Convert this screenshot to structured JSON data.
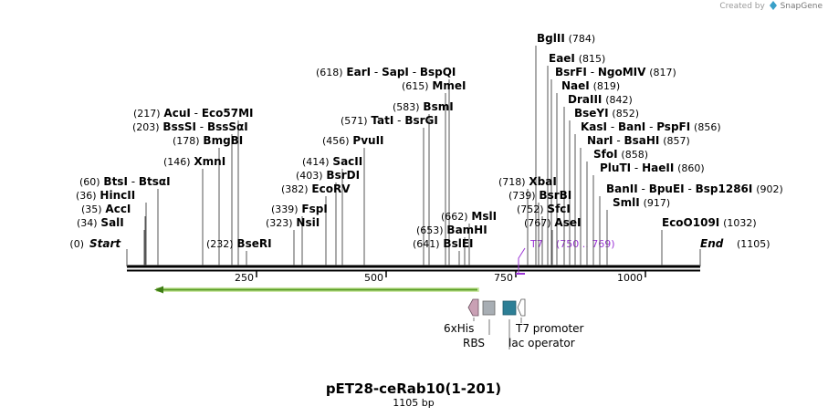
{
  "watermark": {
    "created_by": "Created by",
    "brand": "SnapGene"
  },
  "plasmid": {
    "name": "pET28-ceRab10(1-201)",
    "length_label": "1105 bp",
    "length": 1105
  },
  "ruler": {
    "ticks": [
      250,
      500,
      750,
      1000
    ]
  },
  "endpoints": {
    "start": {
      "pos": "(0)",
      "label": "Start"
    },
    "end": {
      "pos": "(1105)",
      "label": "End"
    }
  },
  "sites": [
    {
      "id": "bglii",
      "pos": "(784)",
      "names": [
        "BglII"
      ]
    },
    {
      "id": "eaei",
      "pos": "(815)",
      "names": [
        "EaeI"
      ]
    },
    {
      "id": "bsrfi",
      "pos": "(817)",
      "names": [
        "BsrFI",
        "NgoMIV"
      ]
    },
    {
      "id": "naei",
      "pos": "(819)",
      "names": [
        "NaeI"
      ]
    },
    {
      "id": "draiii",
      "pos": "(842)",
      "names": [
        "DraIII"
      ]
    },
    {
      "id": "bseyi",
      "pos": "(852)",
      "names": [
        "BseYI"
      ]
    },
    {
      "id": "kasi",
      "pos": "(856)",
      "names": [
        "KasI",
        "BanI",
        "PspFI"
      ]
    },
    {
      "id": "nari",
      "pos": "(857)",
      "names": [
        "NarI",
        "BsaHI"
      ]
    },
    {
      "id": "sfoi",
      "pos": "(858)",
      "names": [
        "SfoI"
      ]
    },
    {
      "id": "pluti",
      "pos": "(860)",
      "names": [
        "PluTI",
        "HaeII"
      ]
    },
    {
      "id": "banii",
      "pos": "(902)",
      "names": [
        "BanII",
        "BpuEI",
        "Bsp1286I"
      ]
    },
    {
      "id": "smli",
      "pos": "(917)",
      "names": [
        "SmlI"
      ]
    },
    {
      "id": "ecoo109i",
      "pos": "(1032)",
      "names": [
        "EcoO109I"
      ]
    },
    {
      "id": "xbai",
      "pos": "(718)",
      "names": [
        "XbaI"
      ]
    },
    {
      "id": "bsrbi",
      "pos": "(739)",
      "names": [
        "BsrBI"
      ]
    },
    {
      "id": "sfci",
      "pos": "(752)",
      "names": [
        "SfcI"
      ]
    },
    {
      "id": "asei",
      "pos": "(767)",
      "names": [
        "AseI"
      ]
    },
    {
      "id": "eari",
      "pos": "(618)",
      "names": [
        "EarI",
        "SapI",
        "BspQI"
      ]
    },
    {
      "id": "mmei",
      "pos": "(615)",
      "names": [
        "MmeI"
      ]
    },
    {
      "id": "bsmi",
      "pos": "(583)",
      "names": [
        "BsmI"
      ]
    },
    {
      "id": "tati",
      "pos": "(571)",
      "names": [
        "TatI",
        "BsrGI"
      ]
    },
    {
      "id": "pvuii",
      "pos": "(456)",
      "names": [
        "PvuII"
      ]
    },
    {
      "id": "sacii",
      "pos": "(414)",
      "names": [
        "SacII"
      ]
    },
    {
      "id": "bsrdi",
      "pos": "(403)",
      "names": [
        "BsrDI"
      ]
    },
    {
      "id": "ecorv",
      "pos": "(382)",
      "names": [
        "EcoRV"
      ]
    },
    {
      "id": "fspi",
      "pos": "(339)",
      "names": [
        "FspI"
      ]
    },
    {
      "id": "nsii",
      "pos": "(323)",
      "names": [
        "NsiI"
      ]
    },
    {
      "id": "msli",
      "pos": "(662)",
      "names": [
        "MslI"
      ]
    },
    {
      "id": "bamhi",
      "pos": "(653)",
      "names": [
        "BamHI"
      ]
    },
    {
      "id": "bslei",
      "pos": "(641)",
      "names": [
        "BslEI"
      ]
    },
    {
      "id": "acui",
      "pos": "(217)",
      "names": [
        "AcuI",
        "Eco57MI"
      ]
    },
    {
      "id": "bsssi",
      "pos": "(203)",
      "names": [
        "BssSI",
        "BssSαI"
      ]
    },
    {
      "id": "bmgbi",
      "pos": "(178)",
      "names": [
        "BmgBI"
      ]
    },
    {
      "id": "xmni",
      "pos": "(146)",
      "names": [
        "XmnI"
      ]
    },
    {
      "id": "btsi",
      "pos": "(60)",
      "names": [
        "BtsI",
        "BtsαI"
      ]
    },
    {
      "id": "hincii",
      "pos": "(36)",
      "names": [
        "HincII"
      ]
    },
    {
      "id": "acci",
      "pos": "(35)",
      "names": [
        "AccI"
      ]
    },
    {
      "id": "sali",
      "pos": "(34)",
      "names": [
        "SalI"
      ]
    },
    {
      "id": "bseri",
      "pos": "(232)",
      "names": [
        "BseRI"
      ]
    }
  ],
  "primer": {
    "name": "T7",
    "range": "(750 .. 769)"
  },
  "features": {
    "his_tag": {
      "label": "6xHis",
      "color": "#c9a0b4"
    },
    "rbs": {
      "label": "RBS",
      "color": "#a8aeb4"
    },
    "t7_promoter": {
      "label": "T7 promoter",
      "color": "#ffffff"
    },
    "lac_operator": {
      "label": "lac operator",
      "color": "#2d7f96"
    },
    "orf_color": "#7fbf3c"
  },
  "colors": {
    "primer": "#9b34d6",
    "backbone": "#000000",
    "line": "#555555"
  }
}
